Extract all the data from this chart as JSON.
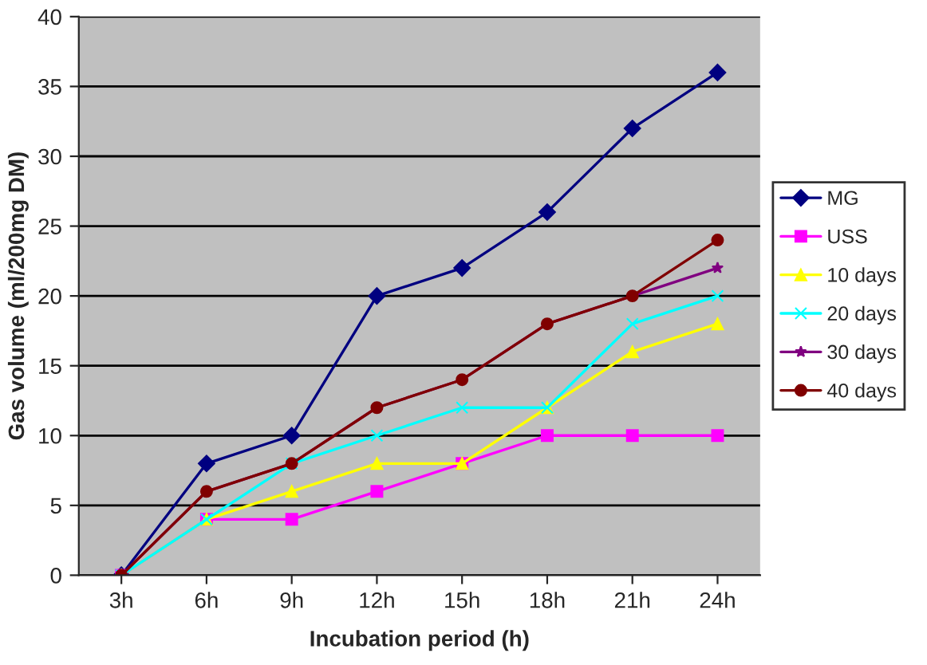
{
  "chart_data": {
    "type": "line",
    "xlabel": "Incubation period (h)",
    "ylabel": "Gas volume (ml/200mg DM)",
    "categories": [
      "3h",
      "6h",
      "9h",
      "12h",
      "15h",
      "18h",
      "21h",
      "24h"
    ],
    "series": [
      {
        "name": "MG",
        "color": "#000080",
        "marker": "diamond",
        "values": [
          0,
          8,
          10,
          20,
          22,
          26,
          32,
          36
        ]
      },
      {
        "name": "USS",
        "color": "#ff00ff",
        "marker": "square",
        "values": [
          0,
          4,
          4,
          6,
          8,
          10,
          10,
          10
        ]
      },
      {
        "name": "10 days",
        "color": "#ffff00",
        "marker": "triangle",
        "values": [
          0,
          4,
          6,
          8,
          8,
          12,
          16,
          18
        ]
      },
      {
        "name": "20 days",
        "color": "#00ffff",
        "marker": "cross",
        "values": [
          0,
          4,
          8,
          10,
          12,
          12,
          18,
          20
        ]
      },
      {
        "name": "30 days",
        "color": "#800080",
        "marker": "star",
        "values": [
          0,
          6,
          8,
          12,
          14,
          18,
          20,
          22
        ]
      },
      {
        "name": "40 days",
        "color": "#800000",
        "marker": "circle",
        "values": [
          0,
          6,
          8,
          12,
          14,
          18,
          20,
          24
        ]
      }
    ],
    "ylim": [
      0,
      40
    ],
    "yticks": [
      0,
      5,
      10,
      15,
      20,
      25,
      30,
      35,
      40
    ],
    "grid": "y",
    "legend": "right"
  }
}
